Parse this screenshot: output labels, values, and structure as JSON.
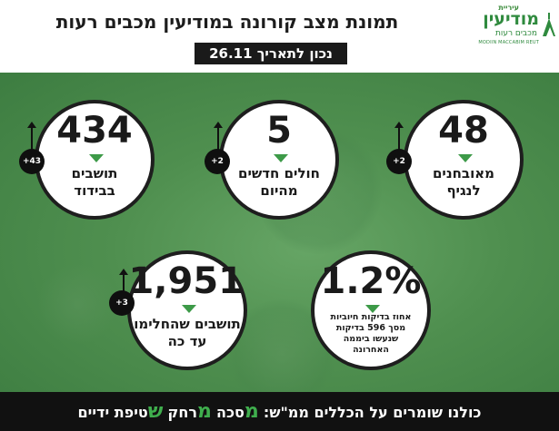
{
  "header": {
    "title": "תמונת מצב קורונה במודיעין מכבים רעות",
    "date": "נכון לתאריך 26.11"
  },
  "logo": {
    "line1": "עיריית",
    "line2": "מודיעין",
    "line3": "מכבים רעות",
    "line4": "MODIIN MACCABIM REUT"
  },
  "stats": {
    "isolation": {
      "value": "434",
      "label1": "תושבים",
      "label2": "בבידוד",
      "badge": "+43"
    },
    "new_cases": {
      "value": "5",
      "label1": "חולים חדשים",
      "label2": "מהיום",
      "badge": "+2"
    },
    "verified": {
      "value": "48",
      "label1": "מאובחנים",
      "label2": "לנגיף",
      "badge": "+2"
    },
    "recovered": {
      "value": "1,951",
      "label1": "תושבים שהחלימו",
      "label2": "עד כה",
      "badge": "+3"
    },
    "positive_rate": {
      "value": "1.2%",
      "line1": "אחוז בדיקות חיוביות",
      "line2": "מסך 596 בדיקות",
      "line3": "שנעשו ביממה",
      "line4": "האחרונה"
    }
  },
  "footer": {
    "intro": "כולנו שומרים על הכללים ממ\"ש:",
    "m1": "מ",
    "w1": "סכה",
    "m2": "מ",
    "w2": "רחק",
    "s": "ש",
    "w3": "טיפת ידיים"
  },
  "colors": {
    "accent_green": "#3fae4d",
    "background_green": "#4f8f4f",
    "dark": "#111111"
  }
}
